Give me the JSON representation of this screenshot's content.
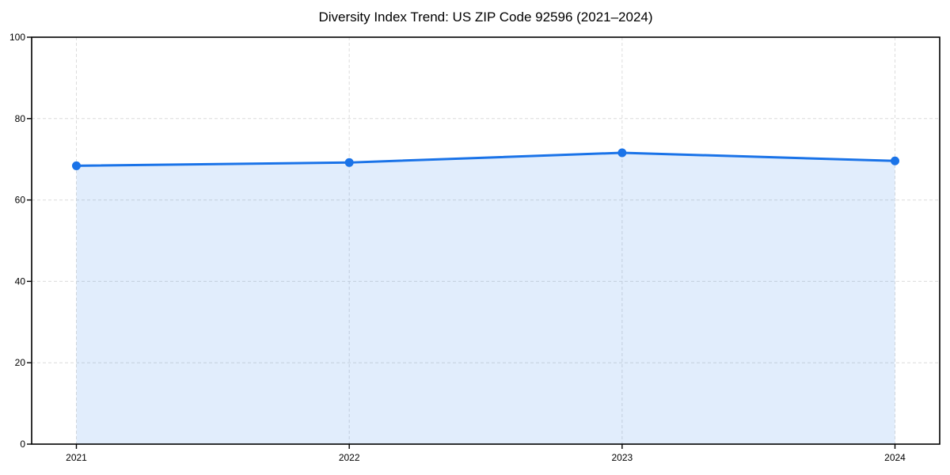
{
  "chart_data": {
    "type": "area",
    "title": "Diversity Index Trend: US ZIP Code 92596 (2021–2024)",
    "categories": [
      "2021",
      "2022",
      "2023",
      "2024"
    ],
    "values": [
      68.4,
      69.2,
      71.6,
      69.6
    ],
    "series_name": "Diversity Index",
    "xlabel": "",
    "ylabel": "",
    "ylim": [
      0,
      100
    ],
    "yticks": [
      0,
      20,
      40,
      60,
      80,
      100
    ],
    "grid": true,
    "grid_style": "dashed",
    "legend": false,
    "marker": "circle",
    "colors": {
      "line": "#1a73e8",
      "fill": "rgba(26,115,232,0.13)",
      "grid": "#dcdcdc",
      "axis": "#000000",
      "tick_text": "#000000",
      "background": "#ffffff"
    }
  }
}
